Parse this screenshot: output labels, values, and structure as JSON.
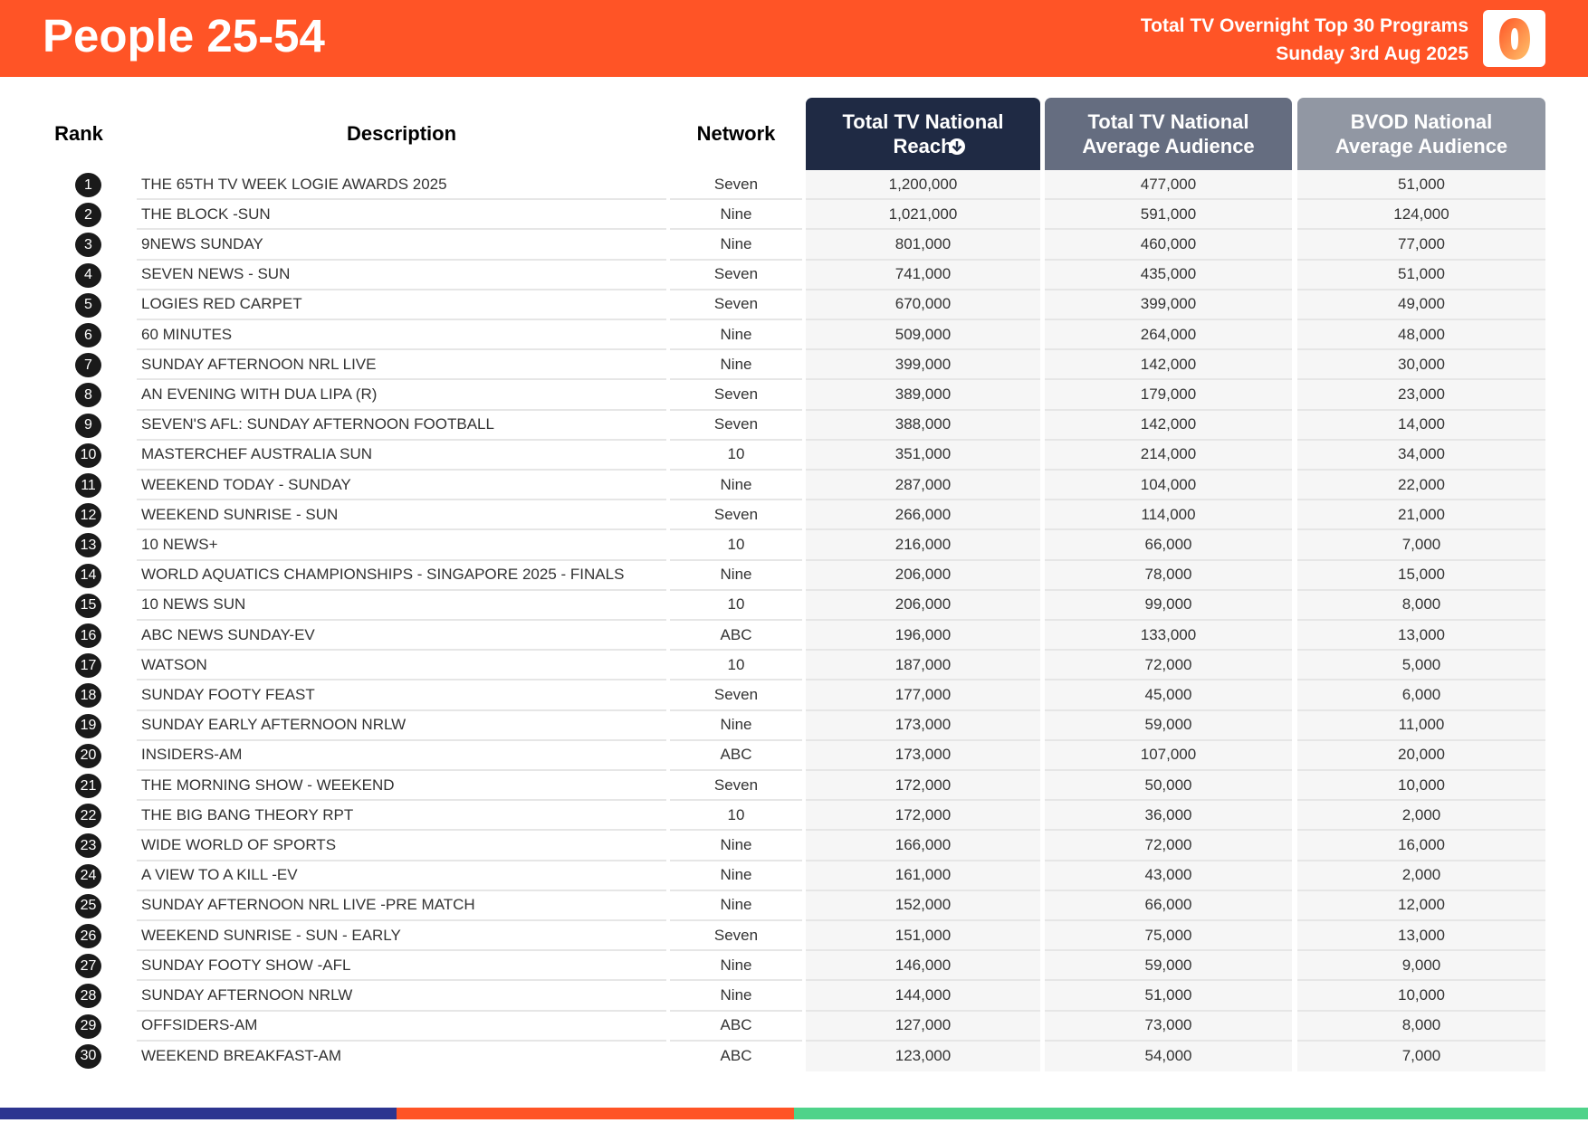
{
  "header": {
    "title": "People 25-54",
    "subtitle_line1": "Total TV Overnight Top 30 Programs",
    "subtitle_line2": "Sunday 3rd Aug 2025",
    "logo_text": "0"
  },
  "columns": {
    "rank": "Rank",
    "description": "Description",
    "network": "Network",
    "reach": "Total TV National Reach",
    "reach_sort_icon": "arrow-down-circle-icon",
    "avg": "Total TV National Average Audience",
    "bvod": "BVOD National Average Audience"
  },
  "colors": {
    "brand": "#ff5426",
    "reach_header": "#1f2a44",
    "avg_header": "#656d80",
    "bvod_header": "#9197a3",
    "footer": [
      "#2d3590",
      "#ff5426",
      "#4fd38a"
    ]
  },
  "rows": [
    {
      "rank": "1",
      "description": "THE 65TH TV WEEK LOGIE AWARDS 2025",
      "network": "Seven",
      "reach": "1,200,000",
      "avg": "477,000",
      "bvod": "51,000"
    },
    {
      "rank": "2",
      "description": "THE BLOCK -SUN",
      "network": "Nine",
      "reach": "1,021,000",
      "avg": "591,000",
      "bvod": "124,000"
    },
    {
      "rank": "3",
      "description": "9NEWS SUNDAY",
      "network": "Nine",
      "reach": "801,000",
      "avg": "460,000",
      "bvod": "77,000"
    },
    {
      "rank": "4",
      "description": "SEVEN NEWS - SUN",
      "network": "Seven",
      "reach": "741,000",
      "avg": "435,000",
      "bvod": "51,000"
    },
    {
      "rank": "5",
      "description": "LOGIES RED CARPET",
      "network": "Seven",
      "reach": "670,000",
      "avg": "399,000",
      "bvod": "49,000"
    },
    {
      "rank": "6",
      "description": "60 MINUTES",
      "network": "Nine",
      "reach": "509,000",
      "avg": "264,000",
      "bvod": "48,000"
    },
    {
      "rank": "7",
      "description": "SUNDAY AFTERNOON NRL LIVE",
      "network": "Nine",
      "reach": "399,000",
      "avg": "142,000",
      "bvod": "30,000"
    },
    {
      "rank": "8",
      "description": "AN EVENING WITH DUA LIPA (R)",
      "network": "Seven",
      "reach": "389,000",
      "avg": "179,000",
      "bvod": "23,000"
    },
    {
      "rank": "9",
      "description": "SEVEN'S AFL: SUNDAY AFTERNOON FOOTBALL",
      "network": "Seven",
      "reach": "388,000",
      "avg": "142,000",
      "bvod": "14,000"
    },
    {
      "rank": "10",
      "description": "MASTERCHEF AUSTRALIA SUN",
      "network": "10",
      "reach": "351,000",
      "avg": "214,000",
      "bvod": "34,000"
    },
    {
      "rank": "11",
      "description": "WEEKEND TODAY - SUNDAY",
      "network": "Nine",
      "reach": "287,000",
      "avg": "104,000",
      "bvod": "22,000"
    },
    {
      "rank": "12",
      "description": "WEEKEND SUNRISE - SUN",
      "network": "Seven",
      "reach": "266,000",
      "avg": "114,000",
      "bvod": "21,000"
    },
    {
      "rank": "13",
      "description": "10 NEWS+",
      "network": "10",
      "reach": "216,000",
      "avg": "66,000",
      "bvod": "7,000"
    },
    {
      "rank": "14",
      "description": "WORLD AQUATICS CHAMPIONSHIPS - SINGAPORE 2025 - FINALS",
      "network": "Nine",
      "reach": "206,000",
      "avg": "78,000",
      "bvod": "15,000"
    },
    {
      "rank": "15",
      "description": "10 NEWS SUN",
      "network": "10",
      "reach": "206,000",
      "avg": "99,000",
      "bvod": "8,000"
    },
    {
      "rank": "16",
      "description": "ABC NEWS SUNDAY-EV",
      "network": "ABC",
      "reach": "196,000",
      "avg": "133,000",
      "bvod": "13,000"
    },
    {
      "rank": "17",
      "description": "WATSON",
      "network": "10",
      "reach": "187,000",
      "avg": "72,000",
      "bvod": "5,000"
    },
    {
      "rank": "18",
      "description": "SUNDAY FOOTY FEAST",
      "network": "Seven",
      "reach": "177,000",
      "avg": "45,000",
      "bvod": "6,000"
    },
    {
      "rank": "19",
      "description": "SUNDAY EARLY AFTERNOON NRLW",
      "network": "Nine",
      "reach": "173,000",
      "avg": "59,000",
      "bvod": "11,000"
    },
    {
      "rank": "20",
      "description": "INSIDERS-AM",
      "network": "ABC",
      "reach": "173,000",
      "avg": "107,000",
      "bvod": "20,000"
    },
    {
      "rank": "21",
      "description": "THE MORNING SHOW - WEEKEND",
      "network": "Seven",
      "reach": "172,000",
      "avg": "50,000",
      "bvod": "10,000"
    },
    {
      "rank": "22",
      "description": "THE BIG BANG THEORY RPT",
      "network": "10",
      "reach": "172,000",
      "avg": "36,000",
      "bvod": "2,000"
    },
    {
      "rank": "23",
      "description": "WIDE WORLD OF SPORTS",
      "network": "Nine",
      "reach": "166,000",
      "avg": "72,000",
      "bvod": "16,000"
    },
    {
      "rank": "24",
      "description": "A VIEW TO A KILL -EV",
      "network": "Nine",
      "reach": "161,000",
      "avg": "43,000",
      "bvod": "2,000"
    },
    {
      "rank": "25",
      "description": "SUNDAY AFTERNOON NRL LIVE -PRE MATCH",
      "network": "Nine",
      "reach": "152,000",
      "avg": "66,000",
      "bvod": "12,000"
    },
    {
      "rank": "26",
      "description": "WEEKEND SUNRISE - SUN - EARLY",
      "network": "Seven",
      "reach": "151,000",
      "avg": "75,000",
      "bvod": "13,000"
    },
    {
      "rank": "27",
      "description": "SUNDAY FOOTY SHOW -AFL",
      "network": "Nine",
      "reach": "146,000",
      "avg": "59,000",
      "bvod": "9,000"
    },
    {
      "rank": "28",
      "description": "SUNDAY AFTERNOON NRLW",
      "network": "Nine",
      "reach": "144,000",
      "avg": "51,000",
      "bvod": "10,000"
    },
    {
      "rank": "29",
      "description": "OFFSIDERS-AM",
      "network": "ABC",
      "reach": "127,000",
      "avg": "73,000",
      "bvod": "8,000"
    },
    {
      "rank": "30",
      "description": "WEEKEND BREAKFAST-AM",
      "network": "ABC",
      "reach": "123,000",
      "avg": "54,000",
      "bvod": "7,000"
    }
  ]
}
